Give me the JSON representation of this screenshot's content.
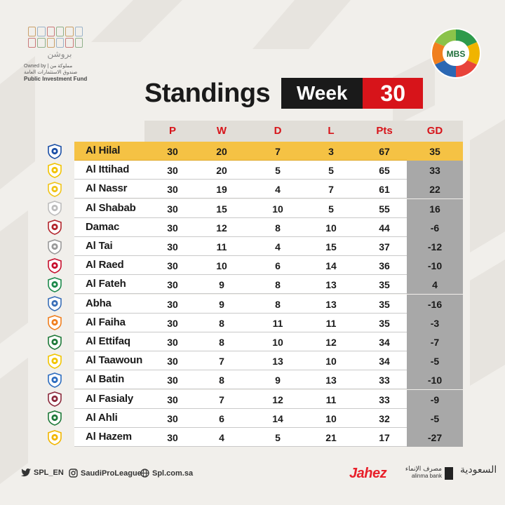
{
  "header": {
    "pif": {
      "arabic_name": "بروشن",
      "owned_by_line": "Owned by | مملوكة من",
      "fund_arabic": "صندوق الاستثمارات العامة",
      "fund_english": "Public Investment Fund"
    },
    "league_logo_text": "MBS",
    "title": "Standings",
    "week_label": "Week",
    "week_number": "30"
  },
  "table": {
    "columns": [
      "P",
      "W",
      "D",
      "L",
      "Pts",
      "GD"
    ],
    "rows": [
      {
        "team": "Al Hilal",
        "p": "30",
        "w": "20",
        "d": "7",
        "l": "3",
        "pts": "67",
        "gd": "35",
        "icon": "al-hilal-crest-icon",
        "color": "#1b4fa6"
      },
      {
        "team": "Al Ittihad",
        "p": "30",
        "w": "20",
        "d": "5",
        "l": "5",
        "pts": "65",
        "gd": "33",
        "icon": "al-ittihad-crest-icon",
        "color": "#f2c300"
      },
      {
        "team": "Al Nassr",
        "p": "30",
        "w": "19",
        "d": "4",
        "l": "7",
        "pts": "61",
        "gd": "22",
        "icon": "al-nassr-crest-icon",
        "color": "#f0c419"
      },
      {
        "team": "Al Shabab",
        "p": "30",
        "w": "15",
        "d": "10",
        "l": "5",
        "pts": "55",
        "gd": "16",
        "icon": "al-shabab-crest-icon",
        "color": "#bdbdbd"
      },
      {
        "team": "Damac",
        "p": "30",
        "w": "12",
        "d": "8",
        "l": "10",
        "pts": "44",
        "gd": "-6",
        "icon": "damac-crest-icon",
        "color": "#b3262d"
      },
      {
        "team": "Al Tai",
        "p": "30",
        "w": "11",
        "d": "4",
        "l": "15",
        "pts": "37",
        "gd": "-12",
        "icon": "al-tai-crest-icon",
        "color": "#9a9a9a"
      },
      {
        "team": "Al Raed",
        "p": "30",
        "w": "10",
        "d": "6",
        "l": "14",
        "pts": "36",
        "gd": "-10",
        "icon": "al-raed-crest-icon",
        "color": "#c8102e"
      },
      {
        "team": "Al Fateh",
        "p": "30",
        "w": "9",
        "d": "8",
        "l": "13",
        "pts": "35",
        "gd": "4",
        "icon": "al-fateh-crest-icon",
        "color": "#1e8a4c"
      },
      {
        "team": "Abha",
        "p": "30",
        "w": "9",
        "d": "8",
        "l": "13",
        "pts": "35",
        "gd": "-16",
        "icon": "abha-crest-icon",
        "color": "#3a6fb8"
      },
      {
        "team": "Al Faiha",
        "p": "30",
        "w": "8",
        "d": "11",
        "l": "11",
        "pts": "35",
        "gd": "-3",
        "icon": "al-faiha-crest-icon",
        "color": "#f07f1f"
      },
      {
        "team": "Al Ettifaq",
        "p": "30",
        "w": "8",
        "d": "10",
        "l": "12",
        "pts": "34",
        "gd": "-7",
        "icon": "al-ettifaq-crest-icon",
        "color": "#1f7a3a"
      },
      {
        "team": "Al Taawoun",
        "p": "30",
        "w": "7",
        "d": "13",
        "l": "10",
        "pts": "34",
        "gd": "-5",
        "icon": "al-taawoun-crest-icon",
        "color": "#f2c500"
      },
      {
        "team": "Al Batin",
        "p": "30",
        "w": "8",
        "d": "9",
        "l": "13",
        "pts": "33",
        "gd": "-10",
        "icon": "al-batin-crest-icon",
        "color": "#2e6dbf"
      },
      {
        "team": "Al Fasialy",
        "p": "30",
        "w": "7",
        "d": "12",
        "l": "11",
        "pts": "33",
        "gd": "-9",
        "icon": "al-fasialy-crest-icon",
        "color": "#8c2a3c"
      },
      {
        "team": "Al Ahli",
        "p": "30",
        "w": "6",
        "d": "14",
        "l": "10",
        "pts": "32",
        "gd": "-5",
        "icon": "al-ahli-crest-icon",
        "color": "#1e7a3a"
      },
      {
        "team": "Al Hazem",
        "p": "30",
        "w": "4",
        "d": "5",
        "l": "21",
        "pts": "17",
        "gd": "-27",
        "icon": "al-hazem-crest-icon",
        "color": "#f2b600"
      }
    ]
  },
  "footer": {
    "twitter": "SPL_EN",
    "instagram": "SaudiProLeague",
    "website": "Spl.com.sa",
    "jahez": "Jahez",
    "alinma_ar": "مصرف الإنماء",
    "alinma_en": "alinma bank",
    "saudi_logo": "السعودية"
  },
  "colors": {
    "accent_red": "#d7141a",
    "leader_gold": "#f5c244",
    "gd_grey": "#a8a8a8",
    "background": "#f1efeb"
  }
}
